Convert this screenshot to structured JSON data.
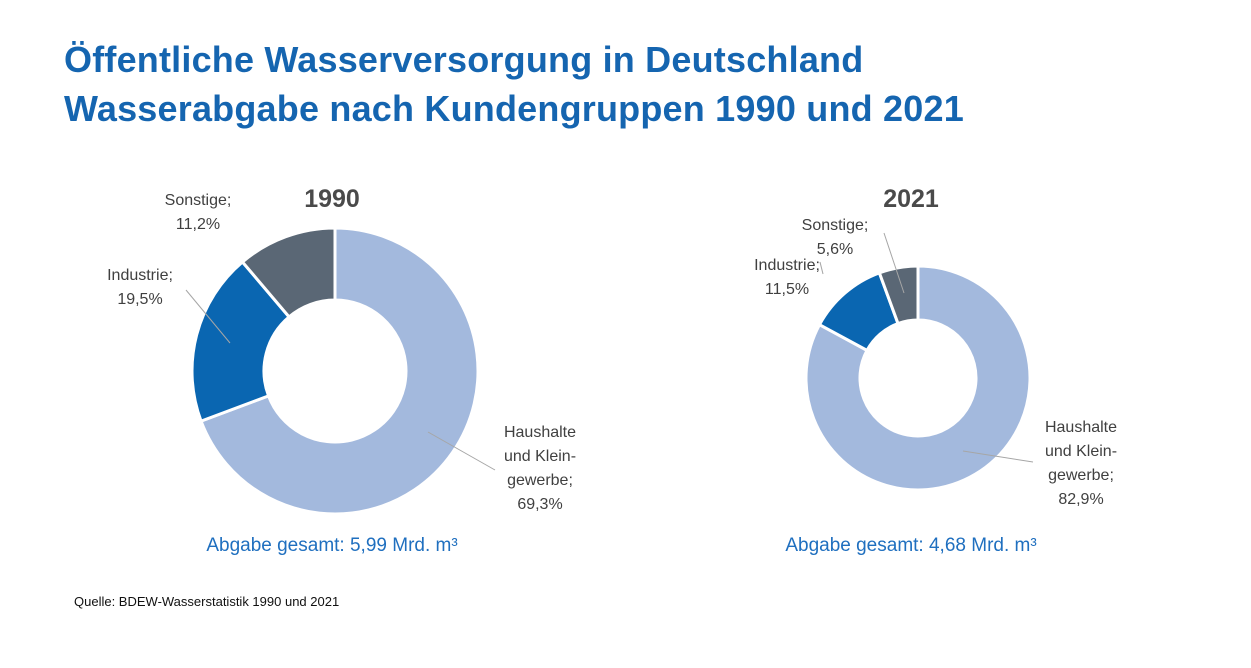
{
  "title": {
    "line1": "Öffentliche Wasserversorgung in Deutschland",
    "line2": "Wasserabgabe nach Kundengruppen 1990 und 2021"
  },
  "source": "Quelle: BDEW-Wasserstatistik 1990 und 2021",
  "colors": {
    "haushalte": "#a3b9dd",
    "industrie": "#0a66b1",
    "sonstige": "#5a6775",
    "title": "#1565b0",
    "total": "#1f6fbf"
  },
  "chart_data": [
    {
      "type": "pie",
      "title": "1990",
      "total_label": "Abgabe gesamt: 5,99 Mrd. m³",
      "slices": [
        {
          "key": "haushalte",
          "label_lines": [
            "Haushalte",
            "und Klein-",
            "gewerbe;",
            "69,3%"
          ],
          "value": 69.3
        },
        {
          "key": "industrie",
          "label_lines": [
            "Industrie;",
            "19,5%"
          ],
          "value": 19.5
        },
        {
          "key": "sonstige",
          "label_lines": [
            "Sonstige;",
            "11,2%"
          ],
          "value": 11.2
        }
      ]
    },
    {
      "type": "pie",
      "title": "2021",
      "total_label": "Abgabe gesamt: 4,68 Mrd. m³",
      "slices": [
        {
          "key": "haushalte",
          "label_lines": [
            "Haushalte",
            "und Klein-",
            "gewerbe;",
            "82,9%"
          ],
          "value": 82.9
        },
        {
          "key": "industrie",
          "label_lines": [
            "Industrie;",
            "11,5%"
          ],
          "value": 11.5
        },
        {
          "key": "sonstige",
          "label_lines": [
            "Sonstige;",
            "5,6%"
          ],
          "value": 5.6
        }
      ]
    }
  ]
}
